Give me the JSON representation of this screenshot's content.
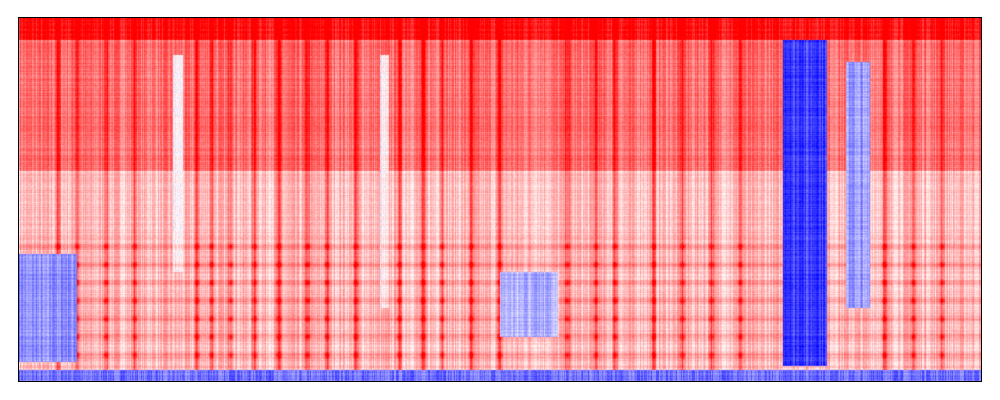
{
  "chart_data": {
    "type": "heatmap",
    "title": "",
    "xlabel": "",
    "ylabel": "",
    "axis_ticks": "none",
    "colorbar": "none",
    "colormap": {
      "low": "#0000ff",
      "mid": "#ffffff",
      "high": "#ff0000"
    },
    "value_range": [
      -1,
      1
    ],
    "frame_color": "#000000",
    "x_range": [
      0,
      1
    ],
    "y_range": [
      0,
      1
    ],
    "y_origin": "bottom",
    "regions": [
      {
        "name": "top-band",
        "x": [
          0.0,
          1.0
        ],
        "y": [
          0.94,
          1.0
        ],
        "value": 0.95
      },
      {
        "name": "upper-half",
        "x": [
          0.0,
          1.0
        ],
        "y": [
          0.58,
          0.94
        ],
        "value": 0.55
      },
      {
        "name": "lower-half",
        "x": [
          0.0,
          1.0
        ],
        "y": [
          0.0,
          0.58
        ],
        "value": 0.25
      },
      {
        "name": "bottom-band",
        "x": [
          0.0,
          1.0
        ],
        "y": [
          0.0,
          0.03
        ],
        "value": -0.55
      },
      {
        "name": "blue-column-main",
        "x": [
          0.795,
          0.84
        ],
        "y": [
          0.04,
          0.94
        ],
        "value": -0.75
      },
      {
        "name": "blue-column-right",
        "x": [
          0.86,
          0.885
        ],
        "y": [
          0.2,
          0.88
        ],
        "value": -0.4
      },
      {
        "name": "blue-lower-left",
        "x": [
          0.0,
          0.06
        ],
        "y": [
          0.05,
          0.35
        ],
        "value": -0.45
      },
      {
        "name": "blue-lower-center",
        "x": [
          0.5,
          0.56
        ],
        "y": [
          0.12,
          0.3
        ],
        "value": -0.3
      },
      {
        "name": "white-column",
        "x": [
          0.16,
          0.17
        ],
        "y": [
          0.3,
          0.9
        ],
        "value": 0.0
      },
      {
        "name": "white-column-2",
        "x": [
          0.375,
          0.385
        ],
        "y": [
          0.2,
          0.9
        ],
        "value": 0.0
      }
    ],
    "bright_columns_x": [
      0.04,
      0.06,
      0.09,
      0.12,
      0.185,
      0.2,
      0.22,
      0.245,
      0.27,
      0.3,
      0.32,
      0.35,
      0.395,
      0.42,
      0.44,
      0.47,
      0.5,
      0.57,
      0.6,
      0.62,
      0.66,
      0.69,
      0.72,
      0.75,
      0.9,
      0.93,
      0.96
    ],
    "harmonic_rows_y": [
      0.07,
      0.12,
      0.17,
      0.22,
      0.27,
      0.32,
      0.37
    ],
    "seed": 7
  }
}
